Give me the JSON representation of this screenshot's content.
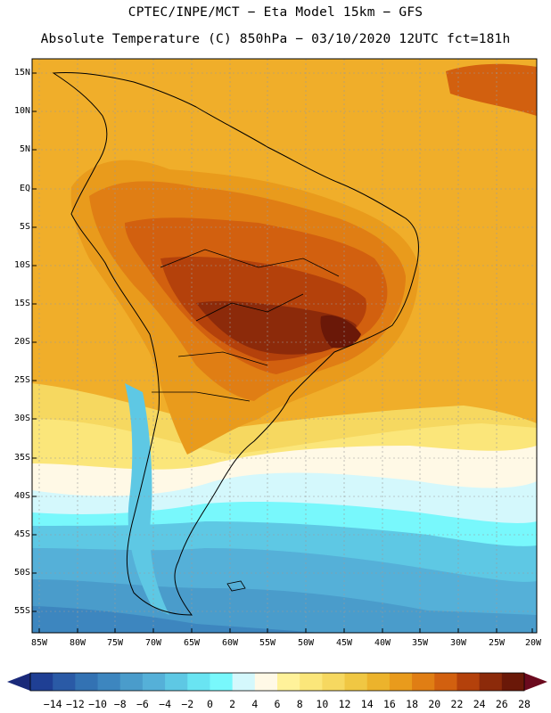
{
  "header": {
    "line1": "CPTEC/INPE/MCT −  Eta Model 15km − GFS",
    "line2": "Absolute Temperature (C) 850hPa − 03/10/2020 12UTC fct=181h"
  },
  "map": {
    "lat_labels": [
      "15N",
      "10N",
      "5N",
      "EQ",
      "5S",
      "10S",
      "15S",
      "20S",
      "25S",
      "30S",
      "35S",
      "40S",
      "45S",
      "50S",
      "55S"
    ],
    "lon_labels": [
      "85W",
      "80W",
      "75W",
      "70W",
      "65W",
      "60W",
      "55W",
      "50W",
      "45W",
      "40W",
      "35W",
      "30W",
      "25W",
      "20W"
    ]
  },
  "colorbar": {
    "labels": [
      "-14",
      "-12",
      "-10",
      "-8",
      "-6",
      "-4",
      "-2",
      "0",
      "2",
      "4",
      "6",
      "8",
      "10",
      "12",
      "14",
      "16",
      "18",
      "20",
      "22",
      "24",
      "26",
      "28"
    ],
    "colors": [
      "#1f3f94",
      "#2a5aa6",
      "#3372b3",
      "#3d86bf",
      "#4a9ccb",
      "#55b0d8",
      "#5ec8e4",
      "#69e4f2",
      "#78f8fc",
      "#d4f8fc",
      "#fff9e6",
      "#fff29a",
      "#fbe67a",
      "#f6d860",
      "#f0c743",
      "#ecb32c",
      "#e99b1c",
      "#e07e14",
      "#d2600f",
      "#b4410b",
      "#8c2a0a",
      "#6a1808"
    ],
    "low_arrow_color": "#1a2a7a",
    "high_arrow_color": "#6b0a1e"
  },
  "accent_colors": {
    "ocean_warm": "#f0ae2a",
    "hot_core": "#7a1a1a",
    "cold_south": "#3a86c0"
  }
}
